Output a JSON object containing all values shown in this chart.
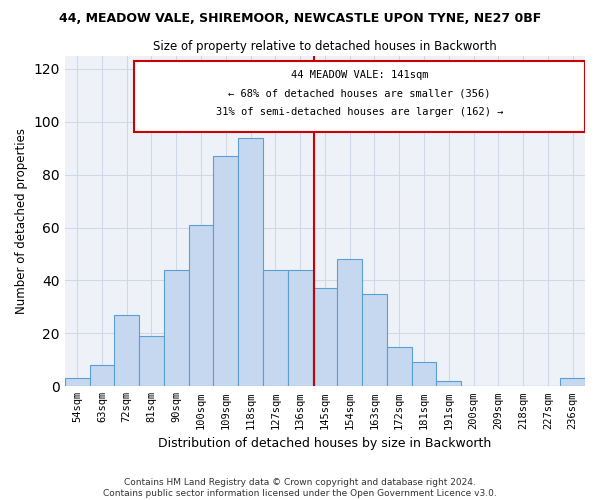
{
  "title1": "44, MEADOW VALE, SHIREMOOR, NEWCASTLE UPON TYNE, NE27 0BF",
  "title2": "Size of property relative to detached houses in Backworth",
  "xlabel": "Distribution of detached houses by size in Backworth",
  "ylabel": "Number of detached properties",
  "categories": [
    "54sqm",
    "63sqm",
    "72sqm",
    "81sqm",
    "90sqm",
    "100sqm",
    "109sqm",
    "118sqm",
    "127sqm",
    "136sqm",
    "145sqm",
    "154sqm",
    "163sqm",
    "172sqm",
    "181sqm",
    "191sqm",
    "200sqm",
    "209sqm",
    "218sqm",
    "227sqm",
    "236sqm"
  ],
  "values": [
    3,
    8,
    27,
    19,
    44,
    61,
    87,
    94,
    44,
    44,
    37,
    48,
    35,
    15,
    9,
    2,
    0,
    0,
    0,
    0,
    3
  ],
  "bar_color": "#c5d8f0",
  "bar_edge_color": "#5a9fd4",
  "property_label": "44 MEADOW VALE: 141sqm",
  "pct_smaller": 68,
  "n_smaller": 356,
  "pct_larger": 31,
  "n_larger": 162,
  "vline_color": "#cc0000",
  "box_edge_color": "#cc0000",
  "ylim": [
    0,
    125
  ],
  "yticks": [
    0,
    20,
    40,
    60,
    80,
    100,
    120
  ],
  "grid_color": "#d0d8e8",
  "background_color": "#eef2f8",
  "footer1": "Contains HM Land Registry data © Crown copyright and database right 2024.",
  "footer2": "Contains public sector information licensed under the Open Government Licence v3.0."
}
